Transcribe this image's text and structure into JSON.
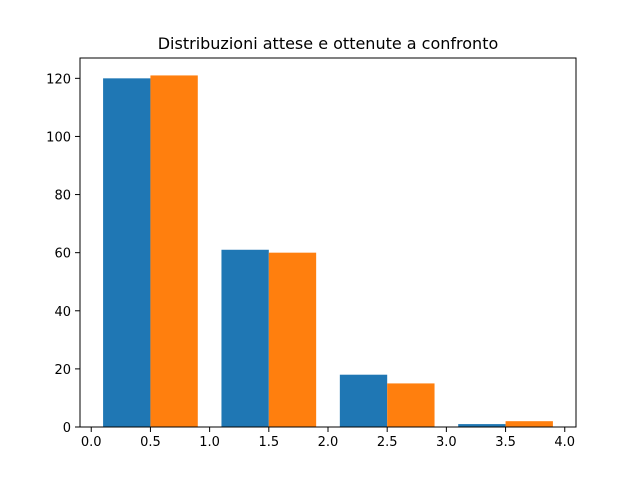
{
  "chart_data": {
    "type": "bar",
    "title": "Distribuzioni attese e ottenute a confronto",
    "xlabel": "",
    "ylabel": "",
    "xlim": [
      -0.095,
      4.095
    ],
    "ylim": [
      0,
      127
    ],
    "grid": false,
    "x_ticks": [
      0.0,
      0.5,
      1.0,
      1.5,
      2.0,
      2.5,
      3.0,
      3.5,
      4.0
    ],
    "x_tick_labels": [
      "0.0",
      "0.5",
      "1.0",
      "1.5",
      "2.0",
      "2.5",
      "3.0",
      "3.5",
      "4.0"
    ],
    "y_ticks": [
      0,
      20,
      40,
      60,
      80,
      100,
      120
    ],
    "y_tick_labels": [
      "0",
      "20",
      "40",
      "60",
      "80",
      "100",
      "120"
    ],
    "series": [
      {
        "color": "#1f77b4",
        "bars": [
          {
            "x0": 0.1,
            "x1": 0.5,
            "value": 120
          },
          {
            "x0": 1.1,
            "x1": 1.5,
            "value": 61
          },
          {
            "x0": 2.1,
            "x1": 2.5,
            "value": 18
          },
          {
            "x0": 3.1,
            "x1": 3.5,
            "value": 1
          }
        ]
      },
      {
        "color": "#ff7f0e",
        "bars": [
          {
            "x0": 0.5,
            "x1": 0.9,
            "value": 121
          },
          {
            "x0": 1.5,
            "x1": 1.9,
            "value": 60
          },
          {
            "x0": 2.5,
            "x1": 2.9,
            "value": 15
          },
          {
            "x0": 3.5,
            "x1": 3.9,
            "value": 2
          }
        ]
      }
    ]
  }
}
